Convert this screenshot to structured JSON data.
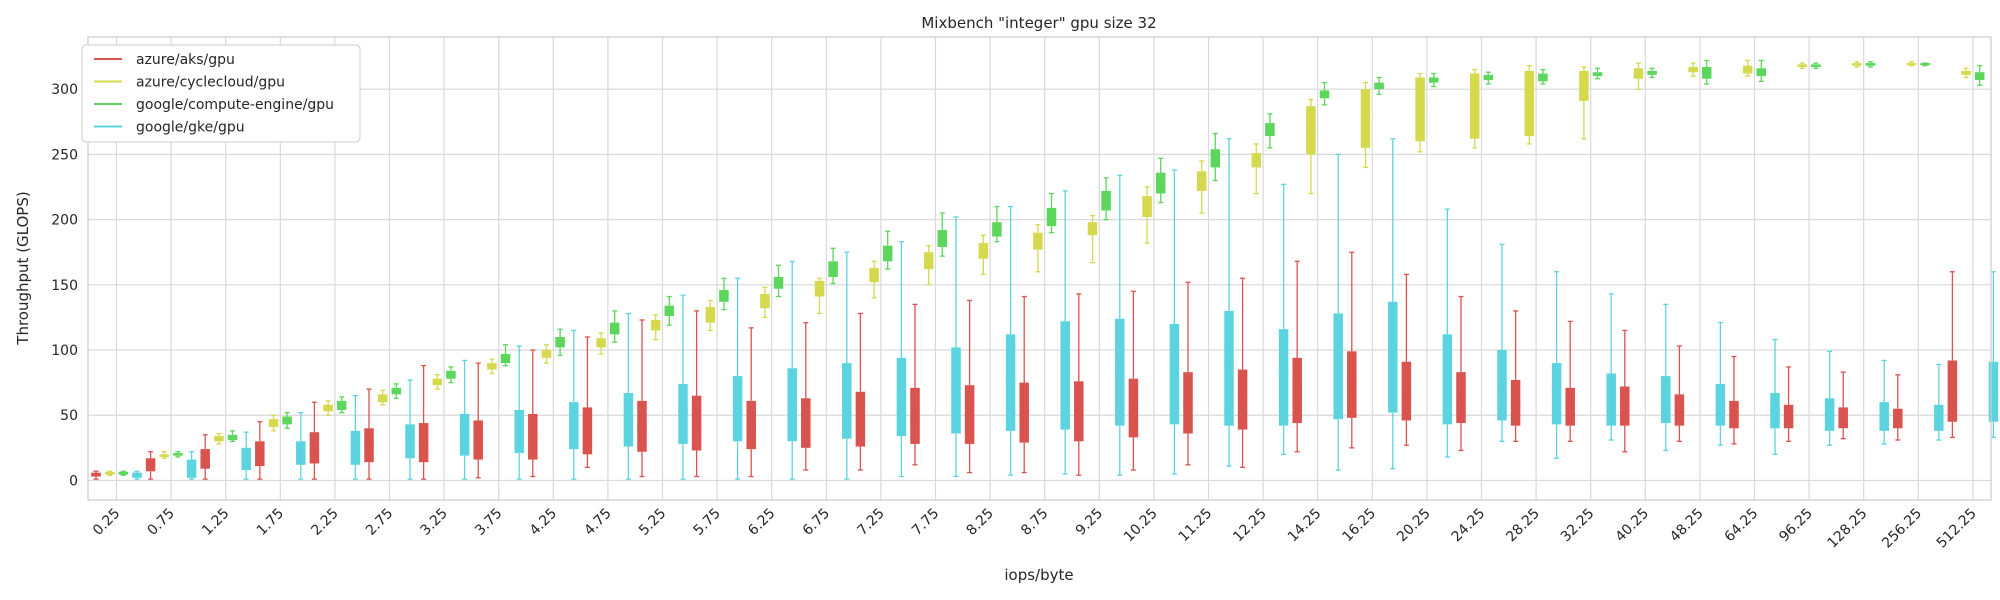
{
  "chart_data": {
    "type": "box",
    "title": "Mixbench \"integer\" gpu size 32",
    "xlabel": "iops/byte",
    "ylabel": "Throughput (GLOPS)",
    "ylim": [
      -15,
      340
    ],
    "yticks": [
      0,
      50,
      100,
      150,
      200,
      250,
      300
    ],
    "grid": true,
    "legend_position": "top-left",
    "categories": [
      "0.25",
      "0.75",
      "1.25",
      "1.75",
      "2.25",
      "2.75",
      "3.25",
      "3.75",
      "4.25",
      "4.75",
      "5.25",
      "5.75",
      "6.25",
      "6.75",
      "7.25",
      "7.75",
      "8.25",
      "8.75",
      "9.25",
      "10.25",
      "11.25",
      "12.25",
      "14.25",
      "16.25",
      "20.25",
      "24.25",
      "28.25",
      "32.25",
      "40.25",
      "48.25",
      "64.25",
      "96.25",
      "128.25",
      "256.25",
      "512.25"
    ],
    "series": [
      {
        "name": "azure/aks/gpu",
        "color": "#d9534f",
        "boxes": [
          [
            1,
            3,
            5,
            6,
            7
          ],
          [
            1,
            7,
            12,
            17,
            22
          ],
          [
            1,
            9,
            16,
            24,
            35
          ],
          [
            1,
            11,
            21,
            30,
            45
          ],
          [
            1,
            13,
            24,
            37,
            60
          ],
          [
            1,
            14,
            27,
            40,
            70
          ],
          [
            1,
            14,
            30,
            44,
            88
          ],
          [
            2,
            16,
            32,
            46,
            90
          ],
          [
            3,
            16,
            34,
            51,
            100
          ],
          [
            10,
            20,
            38,
            56,
            110
          ],
          [
            3,
            22,
            40,
            61,
            123
          ],
          [
            3,
            23,
            43,
            65,
            130
          ],
          [
            3,
            24,
            42,
            61,
            117
          ],
          [
            8,
            25,
            44,
            63,
            121
          ],
          [
            8,
            26,
            47,
            68,
            128
          ],
          [
            12,
            28,
            48,
            71,
            135
          ],
          [
            6,
            28,
            50,
            73,
            138
          ],
          [
            6,
            29,
            52,
            75,
            141
          ],
          [
            4,
            30,
            54,
            76,
            143
          ],
          [
            8,
            33,
            56,
            78,
            145
          ],
          [
            12,
            36,
            58,
            83,
            152
          ],
          [
            10,
            39,
            62,
            85,
            155
          ],
          [
            22,
            44,
            68,
            94,
            168
          ],
          [
            25,
            48,
            74,
            99,
            175
          ],
          [
            27,
            46,
            68,
            91,
            158
          ],
          [
            23,
            44,
            62,
            83,
            141
          ],
          [
            30,
            42,
            58,
            77,
            130
          ],
          [
            30,
            42,
            56,
            71,
            122
          ],
          [
            22,
            42,
            56,
            72,
            115
          ],
          [
            30,
            42,
            53,
            66,
            103
          ],
          [
            28,
            40,
            50,
            61,
            95
          ],
          [
            30,
            40,
            48,
            58,
            87
          ],
          [
            32,
            40,
            47,
            56,
            83
          ],
          [
            31,
            40,
            47,
            55,
            81
          ],
          [
            33,
            45,
            62,
            92,
            160
          ]
        ]
      },
      {
        "name": "azure/cyclecloud/gpu",
        "color": "#d4d94e",
        "boxes": [
          [
            4,
            5,
            6,
            6,
            7
          ],
          [
            17,
            18,
            19,
            20,
            22
          ],
          [
            28,
            30,
            32,
            34,
            36
          ],
          [
            38,
            41,
            44,
            47,
            50
          ],
          [
            50,
            53,
            56,
            58,
            61
          ],
          [
            58,
            60,
            63,
            66,
            69
          ],
          [
            70,
            73,
            76,
            78,
            81
          ],
          [
            82,
            85,
            88,
            90,
            93
          ],
          [
            90,
            94,
            97,
            100,
            104
          ],
          [
            97,
            102,
            106,
            109,
            113
          ],
          [
            108,
            115,
            119,
            123,
            127
          ],
          [
            115,
            121,
            127,
            133,
            138
          ],
          [
            125,
            132,
            138,
            143,
            148
          ],
          [
            128,
            141,
            147,
            153,
            155
          ],
          [
            140,
            152,
            158,
            163,
            168
          ],
          [
            150,
            162,
            168,
            175,
            180
          ],
          [
            158,
            170,
            176,
            182,
            188
          ],
          [
            160,
            177,
            184,
            190,
            196
          ],
          [
            167,
            188,
            193,
            198,
            203
          ],
          [
            182,
            202,
            210,
            218,
            225
          ],
          [
            205,
            222,
            230,
            237,
            245
          ],
          [
            220,
            240,
            245,
            251,
            258
          ],
          [
            220,
            250,
            270,
            287,
            292
          ],
          [
            240,
            255,
            278,
            300,
            305
          ],
          [
            252,
            260,
            285,
            309,
            312
          ],
          [
            255,
            262,
            288,
            312,
            315
          ],
          [
            258,
            264,
            290,
            314,
            318
          ],
          [
            262,
            291,
            302,
            314,
            317
          ],
          [
            300,
            308,
            312,
            316,
            320
          ],
          [
            310,
            313,
            315,
            317,
            320
          ],
          [
            310,
            312,
            315,
            318,
            322
          ],
          [
            316,
            317,
            318,
            319,
            320
          ],
          [
            317,
            318,
            319,
            320,
            321
          ],
          [
            318,
            319,
            319,
            320,
            321
          ],
          [
            309,
            311,
            312,
            314,
            316
          ]
        ]
      },
      {
        "name": "google/compute-engine/gpu",
        "color": "#5cd65c",
        "boxes": [
          [
            4,
            5,
            6,
            6,
            7
          ],
          [
            18,
            19,
            20,
            21,
            22
          ],
          [
            30,
            31,
            33,
            35,
            38
          ],
          [
            40,
            43,
            46,
            49,
            52
          ],
          [
            52,
            54,
            58,
            61,
            64
          ],
          [
            63,
            66,
            69,
            71,
            74
          ],
          [
            75,
            78,
            81,
            84,
            87
          ],
          [
            88,
            90,
            94,
            97,
            104
          ],
          [
            96,
            102,
            106,
            110,
            116
          ],
          [
            106,
            112,
            117,
            121,
            130
          ],
          [
            119,
            126,
            130,
            134,
            141
          ],
          [
            131,
            137,
            142,
            146,
            155
          ],
          [
            141,
            147,
            152,
            156,
            165
          ],
          [
            151,
            156,
            161,
            168,
            178
          ],
          [
            162,
            168,
            175,
            180,
            191
          ],
          [
            172,
            179,
            186,
            192,
            205
          ],
          [
            183,
            187,
            192,
            198,
            210
          ],
          [
            190,
            195,
            202,
            209,
            220
          ],
          [
            200,
            207,
            214,
            222,
            232
          ],
          [
            213,
            220,
            228,
            236,
            247
          ],
          [
            230,
            240,
            248,
            254,
            266
          ],
          [
            255,
            264,
            269,
            274,
            281
          ],
          [
            288,
            293,
            297,
            299,
            305
          ],
          [
            296,
            300,
            302,
            305,
            309
          ],
          [
            302,
            305,
            307,
            309,
            312
          ],
          [
            304,
            307,
            309,
            311,
            313
          ],
          [
            304,
            306,
            309,
            312,
            315
          ],
          [
            308,
            310,
            312,
            313,
            316
          ],
          [
            309,
            311,
            313,
            314,
            316
          ],
          [
            304,
            308,
            313,
            317,
            322
          ],
          [
            306,
            310,
            313,
            316,
            322
          ],
          [
            316,
            317,
            318,
            319,
            320
          ],
          [
            317,
            318,
            319,
            320,
            321
          ],
          [
            318,
            319,
            319,
            320,
            320
          ],
          [
            303,
            307,
            310,
            313,
            318
          ]
        ]
      },
      {
        "name": "google/gke/gpu",
        "color": "#5bd4df",
        "boxes": [
          [
            1,
            2,
            4,
            6,
            7
          ],
          [
            1,
            2,
            10,
            16,
            22
          ],
          [
            1,
            8,
            17,
            25,
            37
          ],
          [
            1,
            12,
            23,
            30,
            52
          ],
          [
            1,
            12,
            28,
            38,
            65
          ],
          [
            1,
            17,
            33,
            43,
            77
          ],
          [
            1,
            19,
            38,
            51,
            92
          ],
          [
            1,
            21,
            40,
            54,
            103
          ],
          [
            1,
            24,
            44,
            60,
            115
          ],
          [
            1,
            26,
            50,
            67,
            128
          ],
          [
            1,
            28,
            54,
            74,
            142
          ],
          [
            1,
            30,
            58,
            80,
            155
          ],
          [
            1,
            30,
            60,
            86,
            168
          ],
          [
            1,
            32,
            62,
            90,
            175
          ],
          [
            3,
            34,
            65,
            94,
            183
          ],
          [
            3,
            36,
            70,
            102,
            202
          ],
          [
            4,
            38,
            78,
            112,
            210
          ],
          [
            5,
            39,
            82,
            122,
            222
          ],
          [
            4,
            42,
            86,
            124,
            234
          ],
          [
            5,
            43,
            88,
            120,
            238
          ],
          [
            11,
            42,
            90,
            130,
            262
          ],
          [
            20,
            42,
            85,
            116,
            227
          ],
          [
            8,
            47,
            92,
            128,
            250
          ],
          [
            9,
            52,
            98,
            137,
            262
          ],
          [
            18,
            43,
            80,
            112,
            208
          ],
          [
            30,
            46,
            72,
            100,
            181
          ],
          [
            17,
            43,
            68,
            90,
            160
          ],
          [
            31,
            42,
            63,
            82,
            143
          ],
          [
            23,
            44,
            62,
            80,
            135
          ],
          [
            27,
            42,
            58,
            74,
            121
          ],
          [
            20,
            40,
            54,
            67,
            108
          ],
          [
            27,
            38,
            50,
            63,
            99
          ],
          [
            28,
            38,
            49,
            60,
            92
          ],
          [
            31,
            38,
            48,
            58,
            89
          ],
          [
            33,
            45,
            63,
            91,
            160
          ]
        ]
      }
    ]
  }
}
